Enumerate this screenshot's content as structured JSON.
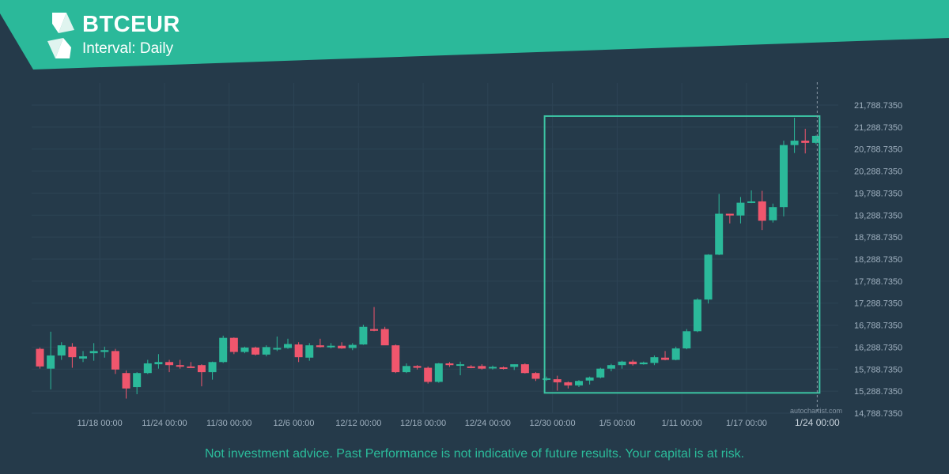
{
  "header": {
    "symbol": "BTCEUR",
    "interval": "Interval: Daily"
  },
  "watermark": "autochartist.com",
  "disclaimer": "Not investment advice. Past Performance is not indicative of future results. Your capital is at risk.",
  "colors": {
    "background": "#253a4a",
    "banner": "#2bb99a",
    "bullish": "#2bb99a",
    "bearish": "#f0566d",
    "pattern_box": "#3cc3a3"
  },
  "icons": {
    "logo": "autochartist-logo-icon"
  },
  "chart_data": {
    "type": "candlestick",
    "title": "BTCEUR",
    "xlabel": "",
    "ylabel": "",
    "ylim": [
      14788.735,
      21788.735
    ],
    "y_ticks": [
      "21,788.7350",
      "21,288.7350",
      "20,788.7350",
      "20,288.7350",
      "19,788.7350",
      "19,288.7350",
      "18,788.7350",
      "18,288.7350",
      "17,788.7350",
      "17,288.7350",
      "16,788.7350",
      "16,288.7350",
      "15,788.7350",
      "15,288.7350",
      "14,788.7350"
    ],
    "x_ticks": [
      {
        "label": "11/18 00:00",
        "day": 5
      },
      {
        "label": "11/24 00:00",
        "day": 11
      },
      {
        "label": "11/30 00:00",
        "day": 17
      },
      {
        "label": "12/6 00:00",
        "day": 23
      },
      {
        "label": "12/12 00:00",
        "day": 29
      },
      {
        "label": "12/18 00:00",
        "day": 35
      },
      {
        "label": "12/24 00:00",
        "day": 41
      },
      {
        "label": "12/30 00:00",
        "day": 47
      },
      {
        "label": "1/5 00:00",
        "day": 53
      },
      {
        "label": "1/11 00:00",
        "day": 59
      },
      {
        "label": "1/17 00:00",
        "day": 65
      }
    ],
    "current_time_label": "1/24 00:00",
    "grid": true,
    "pattern_box": {
      "start_day": 47,
      "end_day": 72,
      "top": 21538,
      "bottom": 15250
    },
    "candles": [
      {
        "o": 16250,
        "h": 16280,
        "l": 15800,
        "c": 15850
      },
      {
        "o": 15800,
        "h": 16640,
        "l": 15330,
        "c": 16100
      },
      {
        "o": 16100,
        "h": 16400,
        "l": 16000,
        "c": 16330
      },
      {
        "o": 16300,
        "h": 16380,
        "l": 15820,
        "c": 16060
      },
      {
        "o": 16030,
        "h": 16200,
        "l": 15950,
        "c": 16080
      },
      {
        "o": 16150,
        "h": 16380,
        "l": 15980,
        "c": 16200
      },
      {
        "o": 16180,
        "h": 16300,
        "l": 16050,
        "c": 16220
      },
      {
        "o": 16200,
        "h": 16250,
        "l": 15680,
        "c": 15780
      },
      {
        "o": 15700,
        "h": 15760,
        "l": 15120,
        "c": 15350
      },
      {
        "o": 15380,
        "h": 15720,
        "l": 15220,
        "c": 15700
      },
      {
        "o": 15700,
        "h": 16000,
        "l": 15680,
        "c": 15920
      },
      {
        "o": 15900,
        "h": 16130,
        "l": 15800,
        "c": 15950
      },
      {
        "o": 15950,
        "h": 16000,
        "l": 15720,
        "c": 15880
      },
      {
        "o": 15880,
        "h": 16000,
        "l": 15800,
        "c": 15850
      },
      {
        "o": 15850,
        "h": 15950,
        "l": 15820,
        "c": 15840
      },
      {
        "o": 15880,
        "h": 15900,
        "l": 15400,
        "c": 15720
      },
      {
        "o": 15720,
        "h": 15960,
        "l": 15550,
        "c": 15950
      },
      {
        "o": 15950,
        "h": 16550,
        "l": 15930,
        "c": 16500
      },
      {
        "o": 16500,
        "h": 16510,
        "l": 16130,
        "c": 16180
      },
      {
        "o": 16180,
        "h": 16300,
        "l": 16150,
        "c": 16280
      },
      {
        "o": 16280,
        "h": 16300,
        "l": 16100,
        "c": 16120
      },
      {
        "o": 16120,
        "h": 16330,
        "l": 16080,
        "c": 16290
      },
      {
        "o": 16250,
        "h": 16530,
        "l": 16200,
        "c": 16270
      },
      {
        "o": 16270,
        "h": 16480,
        "l": 16250,
        "c": 16360
      },
      {
        "o": 16350,
        "h": 16400,
        "l": 15950,
        "c": 16060
      },
      {
        "o": 16050,
        "h": 16380,
        "l": 15980,
        "c": 16330
      },
      {
        "o": 16330,
        "h": 16480,
        "l": 16280,
        "c": 16290
      },
      {
        "o": 16290,
        "h": 16380,
        "l": 16260,
        "c": 16320
      },
      {
        "o": 16320,
        "h": 16400,
        "l": 16250,
        "c": 16260
      },
      {
        "o": 16270,
        "h": 16380,
        "l": 16220,
        "c": 16340
      },
      {
        "o": 16350,
        "h": 16800,
        "l": 16340,
        "c": 16750
      },
      {
        "o": 16700,
        "h": 17200,
        "l": 16650,
        "c": 16660
      },
      {
        "o": 16700,
        "h": 16750,
        "l": 16380,
        "c": 16330
      },
      {
        "o": 16330,
        "h": 16350,
        "l": 15700,
        "c": 15720
      },
      {
        "o": 15720,
        "h": 15920,
        "l": 15700,
        "c": 15860
      },
      {
        "o": 15860,
        "h": 15880,
        "l": 15780,
        "c": 15820
      },
      {
        "o": 15820,
        "h": 15850,
        "l": 15460,
        "c": 15500
      },
      {
        "o": 15500,
        "h": 15930,
        "l": 15480,
        "c": 15920
      },
      {
        "o": 15920,
        "h": 15950,
        "l": 15840,
        "c": 15880
      },
      {
        "o": 15880,
        "h": 15960,
        "l": 15650,
        "c": 15900
      },
      {
        "o": 15850,
        "h": 15880,
        "l": 15810,
        "c": 15830
      },
      {
        "o": 15860,
        "h": 15900,
        "l": 15780,
        "c": 15800
      },
      {
        "o": 15810,
        "h": 15870,
        "l": 15780,
        "c": 15840
      },
      {
        "o": 15830,
        "h": 15850,
        "l": 15780,
        "c": 15800
      },
      {
        "o": 15840,
        "h": 15900,
        "l": 15770,
        "c": 15900
      },
      {
        "o": 15900,
        "h": 15920,
        "l": 15690,
        "c": 15700
      },
      {
        "o": 15700,
        "h": 15720,
        "l": 15520,
        "c": 15570
      },
      {
        "o": 15570,
        "h": 15620,
        "l": 15520,
        "c": 15580
      },
      {
        "o": 15560,
        "h": 15640,
        "l": 15300,
        "c": 15490
      },
      {
        "o": 15490,
        "h": 15510,
        "l": 15350,
        "c": 15420
      },
      {
        "o": 15420,
        "h": 15540,
        "l": 15380,
        "c": 15520
      },
      {
        "o": 15530,
        "h": 15620,
        "l": 15440,
        "c": 15600
      },
      {
        "o": 15600,
        "h": 15820,
        "l": 15580,
        "c": 15800
      },
      {
        "o": 15800,
        "h": 15910,
        "l": 15740,
        "c": 15880
      },
      {
        "o": 15880,
        "h": 15980,
        "l": 15800,
        "c": 15960
      },
      {
        "o": 15960,
        "h": 16000,
        "l": 15870,
        "c": 15900
      },
      {
        "o": 15900,
        "h": 15960,
        "l": 15890,
        "c": 15940
      },
      {
        "o": 15930,
        "h": 16100,
        "l": 15880,
        "c": 16060
      },
      {
        "o": 16050,
        "h": 16200,
        "l": 15990,
        "c": 16000
      },
      {
        "o": 16000,
        "h": 16300,
        "l": 15990,
        "c": 16260
      },
      {
        "o": 16260,
        "h": 16700,
        "l": 16240,
        "c": 16650
      },
      {
        "o": 16650,
        "h": 17400,
        "l": 16630,
        "c": 17370
      },
      {
        "o": 17370,
        "h": 18400,
        "l": 17280,
        "c": 18390
      },
      {
        "o": 18390,
        "h": 19770,
        "l": 18380,
        "c": 19320
      },
      {
        "o": 19320,
        "h": 19320,
        "l": 19100,
        "c": 19280
      },
      {
        "o": 19280,
        "h": 19700,
        "l": 19100,
        "c": 19570
      },
      {
        "o": 19580,
        "h": 19850,
        "l": 19560,
        "c": 19600
      },
      {
        "o": 19600,
        "h": 19840,
        "l": 18950,
        "c": 19160
      },
      {
        "o": 19170,
        "h": 19550,
        "l": 19120,
        "c": 19470
      },
      {
        "o": 19470,
        "h": 20980,
        "l": 19260,
        "c": 20880
      },
      {
        "o": 20880,
        "h": 21500,
        "l": 20700,
        "c": 20980
      },
      {
        "o": 20980,
        "h": 21250,
        "l": 20690,
        "c": 20930
      },
      {
        "o": 20930,
        "h": 21100,
        "l": 20900,
        "c": 21090
      }
    ]
  }
}
